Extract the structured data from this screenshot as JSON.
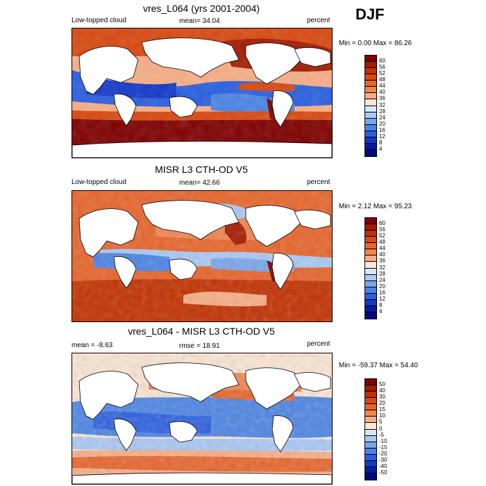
{
  "season": "DJF",
  "panels": [
    {
      "title": "vres_L064 (yrs 2001-2004)",
      "left_label": "Low-topped cloud",
      "center_label": "mean=  34.04",
      "right_label": "percent",
      "minmax": "Min =   0.00 Max =  86.26",
      "colorbar": {
        "ticks": [
          "60",
          "56",
          "52",
          "48",
          "44",
          "40",
          "36",
          "32",
          "28",
          "24",
          "20",
          "16",
          "12",
          "8",
          "4"
        ],
        "colors": [
          "#7f0000",
          "#a31a00",
          "#c23000",
          "#d9480f",
          "#e8642a",
          "#f0854f",
          "#f7ad86",
          "#fce5d3",
          "#d6e6fb",
          "#a9c8f4",
          "#7aa6ec",
          "#4c84e4",
          "#2a5fe0",
          "#1238c9",
          "#061ca0",
          "#000a80"
        ]
      }
    },
    {
      "title": "MISR L3 CTH-OD V5",
      "left_label": "Low-topped cloud",
      "center_label": "mean=  42.66",
      "right_label": "percent",
      "minmax": "Min =   2.12 Max =  95.23",
      "colorbar": {
        "ticks": [
          "60",
          "56",
          "52",
          "48",
          "44",
          "40",
          "36",
          "32",
          "28",
          "24",
          "20",
          "16",
          "12",
          "8",
          "4"
        ],
        "colors": [
          "#7f0000",
          "#a31a00",
          "#c23000",
          "#d9480f",
          "#e8642a",
          "#f0854f",
          "#f7ad86",
          "#fce5d3",
          "#d6e6fb",
          "#a9c8f4",
          "#7aa6ec",
          "#4c84e4",
          "#2a5fe0",
          "#1238c9",
          "#061ca0",
          "#000a80"
        ]
      }
    },
    {
      "title": "vres_L064 - MISR L3 CTH-OD V5",
      "left_label": "mean =  -8.63",
      "center_label": "rmse =  18.91",
      "right_label": "percent",
      "minmax": "Min = -59.37 Max =  54.40",
      "colorbar": {
        "ticks": [
          "50",
          "40",
          "30",
          "20",
          "15",
          "10",
          "5",
          "0",
          "-5",
          "-10",
          "-15",
          "-20",
          "-30",
          "-40",
          "-50"
        ],
        "colors": [
          "#7f0000",
          "#a31a00",
          "#c23000",
          "#d9480f",
          "#e8642a",
          "#f0854f",
          "#f7ad86",
          "#fce5d3",
          "#d6e6fb",
          "#a9c8f4",
          "#7aa6ec",
          "#4c84e4",
          "#2a5fe0",
          "#1238c9",
          "#061ca0",
          "#000a80"
        ]
      }
    }
  ]
}
